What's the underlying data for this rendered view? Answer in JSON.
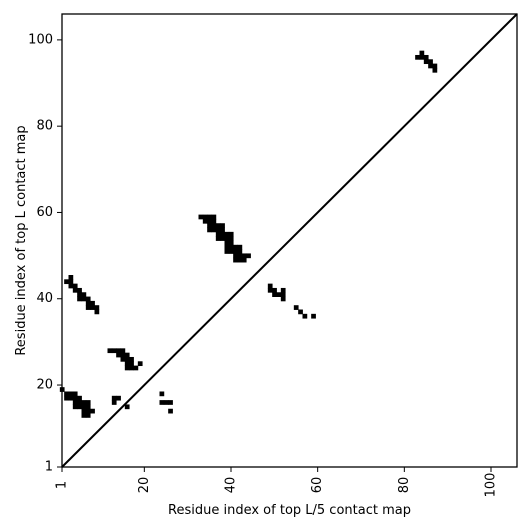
{
  "chart_data": {
    "type": "scatter",
    "xlabel": "Residue index of top L/5 contact map",
    "ylabel": "Residue index of top L contact map",
    "xlim": [
      1,
      106
    ],
    "ylim": [
      1,
      106
    ],
    "x_ticks": [
      {
        "value": 1,
        "label": "1"
      },
      {
        "value": 20,
        "label": "20"
      },
      {
        "value": 40,
        "label": "40"
      },
      {
        "value": 60,
        "label": "60"
      },
      {
        "value": 80,
        "label": "80"
      },
      {
        "value": 100,
        "label": "100"
      }
    ],
    "y_ticks": [
      {
        "value": 1,
        "label": "1"
      },
      {
        "value": 20,
        "label": "20"
      },
      {
        "value": 40,
        "label": "40"
      },
      {
        "value": 60,
        "label": "60"
      },
      {
        "value": 80,
        "label": "80"
      },
      {
        "value": 100,
        "label": "100"
      }
    ],
    "diagonal": true,
    "marker": "square",
    "color": "#000000",
    "upper_triangle_top_L": [
      [
        2,
        44
      ],
      [
        3,
        44
      ],
      [
        3,
        45
      ],
      [
        3,
        43
      ],
      [
        4,
        43
      ],
      [
        4,
        42
      ],
      [
        5,
        42
      ],
      [
        5,
        41
      ],
      [
        5,
        40
      ],
      [
        6,
        41
      ],
      [
        6,
        40
      ],
      [
        7,
        40
      ],
      [
        7,
        39
      ],
      [
        7,
        38
      ],
      [
        8,
        39
      ],
      [
        8,
        38
      ],
      [
        9,
        38
      ],
      [
        9,
        37
      ],
      [
        12,
        28
      ],
      [
        13,
        28
      ],
      [
        14,
        28
      ],
      [
        14,
        27
      ],
      [
        15,
        28
      ],
      [
        15,
        27
      ],
      [
        15,
        26
      ],
      [
        16,
        27
      ],
      [
        16,
        26
      ],
      [
        16,
        25
      ],
      [
        16,
        24
      ],
      [
        17,
        26
      ],
      [
        17,
        25
      ],
      [
        17,
        24
      ],
      [
        18,
        24
      ],
      [
        19,
        25
      ],
      [
        33,
        59
      ],
      [
        34,
        59
      ],
      [
        34,
        58
      ],
      [
        35,
        59
      ],
      [
        35,
        58
      ],
      [
        35,
        57
      ],
      [
        35,
        56
      ],
      [
        36,
        59
      ],
      [
        36,
        58
      ],
      [
        36,
        57
      ],
      [
        36,
        56
      ],
      [
        37,
        57
      ],
      [
        37,
        56
      ],
      [
        37,
        55
      ],
      [
        37,
        54
      ],
      [
        38,
        57
      ],
      [
        38,
        56
      ],
      [
        38,
        55
      ],
      [
        38,
        54
      ],
      [
        39,
        55
      ],
      [
        39,
        54
      ],
      [
        39,
        53
      ],
      [
        39,
        52
      ],
      [
        39,
        51
      ],
      [
        40,
        55
      ],
      [
        40,
        54
      ],
      [
        40,
        53
      ],
      [
        40,
        52
      ],
      [
        40,
        51
      ],
      [
        41,
        52
      ],
      [
        41,
        51
      ],
      [
        41,
        50
      ],
      [
        41,
        49
      ],
      [
        42,
        52
      ],
      [
        42,
        51
      ],
      [
        42,
        50
      ],
      [
        42,
        49
      ],
      [
        43,
        50
      ],
      [
        43,
        49
      ],
      [
        44,
        50
      ],
      [
        49,
        43
      ],
      [
        49,
        42
      ],
      [
        50,
        42
      ],
      [
        50,
        41
      ],
      [
        51,
        41
      ],
      [
        52,
        42
      ],
      [
        52,
        41
      ],
      [
        52,
        40
      ],
      [
        55,
        38
      ],
      [
        56,
        37
      ],
      [
        57,
        36
      ],
      [
        59,
        36
      ],
      [
        83,
        96
      ],
      [
        84,
        97
      ],
      [
        84,
        96
      ],
      [
        85,
        96
      ],
      [
        85,
        95
      ],
      [
        86,
        95
      ],
      [
        86,
        94
      ],
      [
        87,
        94
      ],
      [
        87,
        93
      ]
    ],
    "lower_triangle_top_L5": [
      [
        1,
        19
      ],
      [
        2,
        18
      ],
      [
        2,
        17
      ],
      [
        3,
        18
      ],
      [
        3,
        17
      ],
      [
        4,
        18
      ],
      [
        4,
        17
      ],
      [
        4,
        16
      ],
      [
        4,
        15
      ],
      [
        5,
        17
      ],
      [
        5,
        16
      ],
      [
        5,
        15
      ],
      [
        6,
        16
      ],
      [
        6,
        15
      ],
      [
        6,
        14
      ],
      [
        6,
        13
      ],
      [
        7,
        16
      ],
      [
        7,
        15
      ],
      [
        7,
        14
      ],
      [
        7,
        13
      ],
      [
        8,
        14
      ],
      [
        13,
        17
      ],
      [
        13,
        16
      ],
      [
        14,
        17
      ],
      [
        16,
        15
      ],
      [
        24,
        18
      ],
      [
        24,
        16
      ],
      [
        25,
        16
      ],
      [
        26,
        16
      ],
      [
        26,
        14
      ]
    ]
  }
}
